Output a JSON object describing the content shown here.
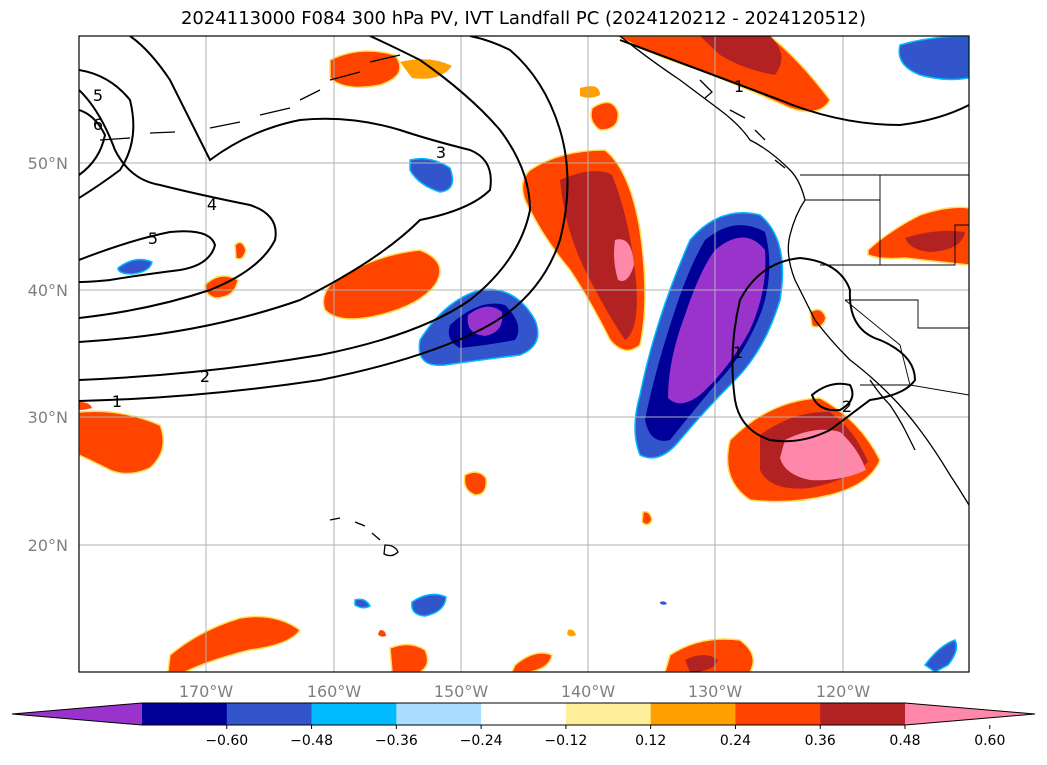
{
  "title": "2024113000 F084 300 hPa PV, IVT Landfall PC (2024120212 - 2024120512)",
  "lat_labels": [
    "50°N",
    "40°N",
    "30°N",
    "20°N"
  ],
  "lon_labels": [
    "170°W",
    "160°W",
    "150°W",
    "140°W",
    "130°W",
    "120°W"
  ],
  "colorbar": {
    "colors": [
      "#9933cc",
      "#000099",
      "#3355cc",
      "#00bbff",
      "#aaddff",
      "#ffffff",
      "#ffee99",
      "#ffa000",
      "#ff4400",
      "#b22222",
      "#ff88aa"
    ],
    "tick_labels": [
      "−0.60",
      "−0.48",
      "−0.36",
      "−0.24",
      "−0.12",
      "0.12",
      "0.24",
      "0.36",
      "0.48",
      "0.60"
    ]
  },
  "contour_labels": [
    "1",
    "2",
    "3",
    "4",
    "5",
    "6",
    "5",
    "1",
    "2",
    "1"
  ]
}
